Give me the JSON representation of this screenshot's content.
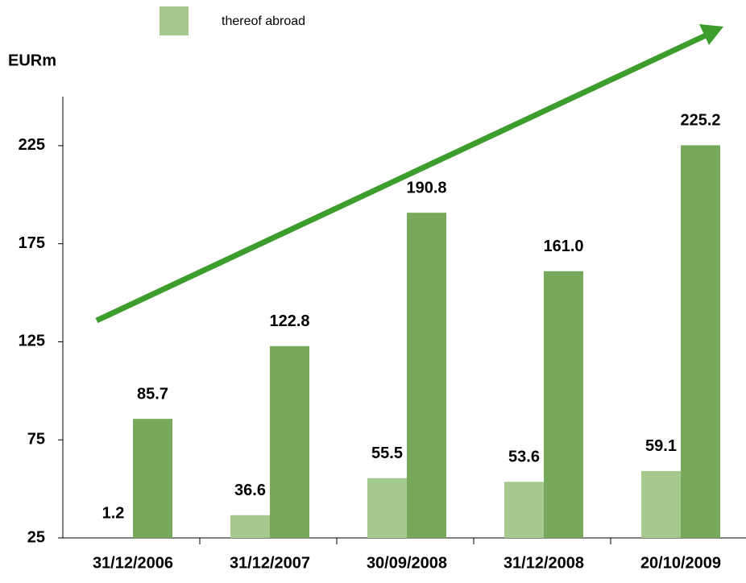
{
  "chart_data": {
    "type": "bar",
    "y_label": "EURm",
    "categories": [
      "31/12/2006",
      "31/12/2007",
      "30/09/2008",
      "31/12/2008",
      "20/10/2009"
    ],
    "series": [
      {
        "name": "thereof abroad",
        "color": "#a6c98f",
        "values": [
          1.2,
          36.6,
          55.5,
          53.6,
          59.1
        ]
      },
      {
        "color": "#76aa5a",
        "values": [
          85.7,
          122.8,
          190.8,
          161,
          225.2
        ],
        "value_labels": [
          "85.7",
          "122.8",
          "190.8",
          "161.0",
          "225.2"
        ]
      }
    ],
    "ylim": [
      25,
      250
    ],
    "yticks": [
      25,
      75,
      125,
      175,
      225
    ],
    "grid": false
  }
}
